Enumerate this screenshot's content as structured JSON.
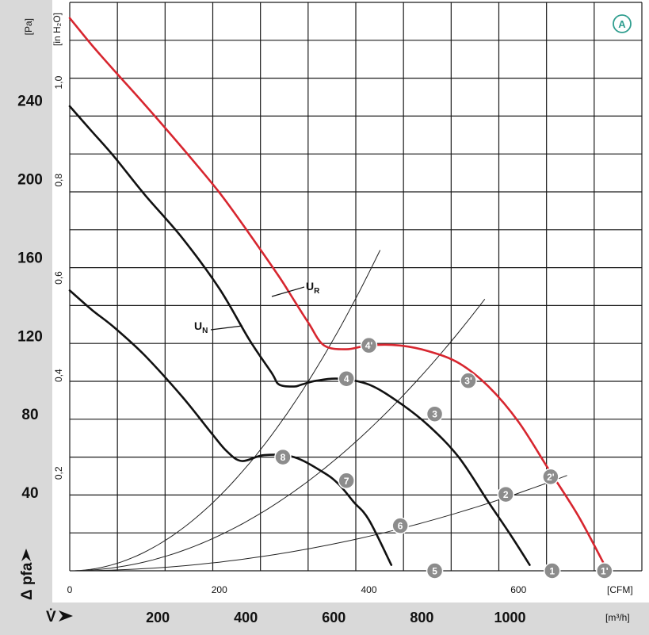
{
  "chart_data": {
    "type": "line",
    "badge": "A",
    "x_axis_cfm": {
      "unit": "[CFM]",
      "range": [
        0,
        765
      ],
      "ticks": [
        "0",
        "200",
        "400",
        "600"
      ]
    },
    "x_axis_m3h": {
      "label": "V̇",
      "unit": "[m³/h]",
      "ticks": [
        "200",
        "400",
        "600",
        "800",
        "1000"
      ]
    },
    "y_axis_pa": {
      "label": "Δ pfa",
      "unit": "[Pa]",
      "range": [
        0,
        290
      ],
      "ticks": [
        "40",
        "80",
        "120",
        "160",
        "200",
        "240"
      ]
    },
    "y_axis_inh2o": {
      "unit": "[in H₂O]",
      "ticks": [
        "0,2",
        "0,4",
        "0,6",
        "0,8",
        "1,0"
      ]
    },
    "series": [
      {
        "name": "UR",
        "label_main": "U",
        "label_sub": "R",
        "color": "#d7262f",
        "x_cfm": [
          0,
          30,
          60,
          100,
          150,
          200,
          240,
          280,
          300,
          320,
          340,
          370,
          400,
          440,
          480,
          520,
          560,
          600,
          640,
          680,
          715
        ],
        "y_pa": [
          282,
          268,
          255,
          238,
          216,
          193,
          172,
          150,
          138,
          126,
          115,
          113,
          115,
          115,
          112,
          106,
          94,
          76,
          52,
          28,
          3
        ]
      },
      {
        "name": "UN",
        "label_main": "U",
        "label_sub": "N",
        "color": "#111111",
        "x_cfm": [
          0,
          30,
          60,
          100,
          150,
          200,
          240,
          270,
          280,
          300,
          310,
          330,
          360,
          400,
          440,
          480,
          520,
          560,
          590,
          615
        ],
        "y_pa": [
          237,
          224,
          211,
          192,
          170,
          144,
          118,
          101,
          95,
          94,
          95,
          97,
          98,
          95,
          86,
          74,
          58,
          35,
          18,
          3
        ]
      },
      {
        "name": "",
        "color": "#111111",
        "x_cfm": [
          0,
          30,
          60,
          100,
          150,
          190,
          210,
          230,
          260,
          300,
          340,
          360,
          380,
          400,
          430
        ],
        "y_pa": [
          143,
          133,
          124,
          110,
          89,
          70,
          61,
          56,
          59,
          58,
          50,
          44,
          35,
          26,
          3
        ]
      }
    ],
    "system_curves": [
      {
        "k": 0.00095,
        "x_end": 415
      },
      {
        "k": 0.00045,
        "x_end": 555
      },
      {
        "k": 0.00011,
        "x_end": 665
      }
    ],
    "operating_points": [
      {
        "label": "1",
        "x_cfm": 645,
        "y_pa": 0
      },
      {
        "label": "2",
        "x_cfm": 583,
        "y_pa": 39
      },
      {
        "label": "3",
        "x_cfm": 488,
        "y_pa": 80
      },
      {
        "label": "4",
        "x_cfm": 370,
        "y_pa": 98
      },
      {
        "label": "5",
        "x_cfm": 488,
        "y_pa": 0
      },
      {
        "label": "6",
        "x_cfm": 442,
        "y_pa": 23
      },
      {
        "label": "7",
        "x_cfm": 370,
        "y_pa": 46
      },
      {
        "label": "8",
        "x_cfm": 285,
        "y_pa": 58
      },
      {
        "label": "1'",
        "x_cfm": 715,
        "y_pa": 0
      },
      {
        "label": "2'",
        "x_cfm": 643,
        "y_pa": 48
      },
      {
        "label": "3'",
        "x_cfm": 533,
        "y_pa": 97
      },
      {
        "label": "4'",
        "x_cfm": 400,
        "y_pa": 115
      }
    ]
  }
}
